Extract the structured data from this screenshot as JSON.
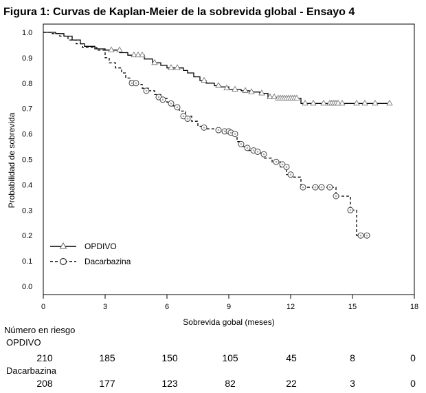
{
  "title": "Figura 1: Curvas de Kaplan-Meier de la sobrevida global - Ensayo 4",
  "risk_table": {
    "heading": "Número en riesgo",
    "rows": [
      {
        "name": "OPDIVO",
        "values": [
          "210",
          "185",
          "150",
          "105",
          "45",
          "8",
          "0"
        ]
      },
      {
        "name": "Dacarbazina",
        "values": [
          "208",
          "177",
          "123",
          "82",
          "22",
          "3",
          "0"
        ]
      }
    ]
  },
  "chart_data": {
    "type": "line",
    "title": "Figura 1: Curvas de Kaplan-Meier de la sobrevida global - Ensayo 4",
    "xlabel": "Sobrevida gobal (meses)",
    "ylabel": "Probabilidad de sobrevida",
    "xlim": [
      0,
      18
    ],
    "ylim": [
      0,
      1.03
    ],
    "xticks": [
      0,
      3,
      6,
      9,
      12,
      15,
      18
    ],
    "xtick_labels": [
      "0",
      "3",
      "6",
      "9",
      "12",
      "15",
      "18"
    ],
    "yticks": [
      0,
      0.1,
      0.2,
      0.3,
      0.4,
      0.5,
      0.6,
      0.7,
      0.8,
      0.9,
      1.0
    ],
    "ytick_labels": [
      "0.0",
      "0.1",
      "0.2",
      "0.3",
      "0.4",
      "0.5",
      "0.6",
      "0.7",
      "0.8",
      "0.9",
      "1.0"
    ],
    "grid": false,
    "legend_position": "bottom-left",
    "series": [
      {
        "name": "OPDIVO",
        "style": "solid",
        "marker": "triangle",
        "color": "#000000",
        "steps": [
          [
            0,
            1.0
          ],
          [
            0.6,
            0.995
          ],
          [
            1.0,
            0.985
          ],
          [
            1.4,
            0.97
          ],
          [
            1.8,
            0.955
          ],
          [
            2.0,
            0.945
          ],
          [
            2.5,
            0.935
          ],
          [
            3.0,
            0.93
          ],
          [
            3.7,
            0.92
          ],
          [
            4.1,
            0.91
          ],
          [
            4.9,
            0.895
          ],
          [
            5.3,
            0.88
          ],
          [
            5.7,
            0.87
          ],
          [
            6.0,
            0.86
          ],
          [
            6.8,
            0.85
          ],
          [
            7.0,
            0.84
          ],
          [
            7.3,
            0.825
          ],
          [
            7.6,
            0.81
          ],
          [
            7.9,
            0.8
          ],
          [
            8.3,
            0.79
          ],
          [
            8.6,
            0.785
          ],
          [
            9.0,
            0.775
          ],
          [
            9.6,
            0.77
          ],
          [
            10.0,
            0.765
          ],
          [
            10.5,
            0.76
          ],
          [
            10.9,
            0.745
          ],
          [
            11.3,
            0.74
          ],
          [
            12.5,
            0.72
          ],
          [
            16.8,
            0.72
          ]
        ],
        "censored": [
          [
            3.3,
            0.93
          ],
          [
            3.7,
            0.93
          ],
          [
            4.4,
            0.91
          ],
          [
            4.6,
            0.91
          ],
          [
            4.8,
            0.91
          ],
          [
            5.4,
            0.88
          ],
          [
            6.2,
            0.86
          ],
          [
            6.5,
            0.86
          ],
          [
            7.8,
            0.81
          ],
          [
            8.5,
            0.79
          ],
          [
            8.9,
            0.78
          ],
          [
            9.3,
            0.775
          ],
          [
            9.8,
            0.77
          ],
          [
            10.1,
            0.765
          ],
          [
            10.6,
            0.76
          ],
          [
            11.0,
            0.745
          ],
          [
            11.2,
            0.745
          ],
          [
            11.4,
            0.74
          ],
          [
            11.5,
            0.74
          ],
          [
            11.6,
            0.74
          ],
          [
            11.7,
            0.74
          ],
          [
            11.8,
            0.74
          ],
          [
            11.9,
            0.74
          ],
          [
            12.0,
            0.74
          ],
          [
            12.1,
            0.74
          ],
          [
            12.2,
            0.74
          ],
          [
            12.3,
            0.74
          ],
          [
            12.7,
            0.72
          ],
          [
            13.1,
            0.72
          ],
          [
            13.6,
            0.72
          ],
          [
            13.9,
            0.72
          ],
          [
            14.0,
            0.72
          ],
          [
            14.1,
            0.72
          ],
          [
            14.2,
            0.72
          ],
          [
            14.3,
            0.72
          ],
          [
            14.5,
            0.72
          ],
          [
            15.2,
            0.72
          ],
          [
            15.6,
            0.72
          ],
          [
            16.1,
            0.72
          ],
          [
            16.8,
            0.72
          ]
        ]
      },
      {
        "name": "Dacarbazina",
        "style": "dashed",
        "marker": "circle",
        "color": "#000000",
        "steps": [
          [
            0,
            1.0
          ],
          [
            0.4,
            0.995
          ],
          [
            0.8,
            0.985
          ],
          [
            1.2,
            0.97
          ],
          [
            1.6,
            0.955
          ],
          [
            1.9,
            0.94
          ],
          [
            2.6,
            0.93
          ],
          [
            3.0,
            0.9
          ],
          [
            3.2,
            0.88
          ],
          [
            3.5,
            0.86
          ],
          [
            3.8,
            0.84
          ],
          [
            4.0,
            0.82
          ],
          [
            4.2,
            0.81
          ],
          [
            4.5,
            0.795
          ],
          [
            4.8,
            0.78
          ],
          [
            5.1,
            0.77
          ],
          [
            5.4,
            0.755
          ],
          [
            5.7,
            0.74
          ],
          [
            6.0,
            0.725
          ],
          [
            6.3,
            0.71
          ],
          [
            6.6,
            0.69
          ],
          [
            6.9,
            0.67
          ],
          [
            7.2,
            0.65
          ],
          [
            7.5,
            0.63
          ],
          [
            7.9,
            0.62
          ],
          [
            8.6,
            0.61
          ],
          [
            9.2,
            0.6
          ],
          [
            9.4,
            0.57
          ],
          [
            9.6,
            0.55
          ],
          [
            9.9,
            0.535
          ],
          [
            10.3,
            0.525
          ],
          [
            10.7,
            0.505
          ],
          [
            11.1,
            0.49
          ],
          [
            11.5,
            0.47
          ],
          [
            11.8,
            0.44
          ],
          [
            12.0,
            0.43
          ],
          [
            12.5,
            0.39
          ],
          [
            13.9,
            0.39
          ],
          [
            14.2,
            0.355
          ],
          [
            14.8,
            0.355
          ],
          [
            14.9,
            0.3
          ],
          [
            15.2,
            0.2
          ],
          [
            15.7,
            0.2
          ]
        ],
        "censored": [
          [
            4.3,
            0.8
          ],
          [
            4.5,
            0.8
          ],
          [
            5.0,
            0.77
          ],
          [
            5.6,
            0.745
          ],
          [
            5.8,
            0.735
          ],
          [
            6.2,
            0.72
          ],
          [
            6.5,
            0.705
          ],
          [
            6.8,
            0.67
          ],
          [
            7.0,
            0.66
          ],
          [
            7.8,
            0.625
          ],
          [
            8.5,
            0.615
          ],
          [
            8.8,
            0.61
          ],
          [
            9.0,
            0.61
          ],
          [
            9.1,
            0.605
          ],
          [
            9.3,
            0.6
          ],
          [
            9.6,
            0.56
          ],
          [
            9.9,
            0.545
          ],
          [
            10.2,
            0.535
          ],
          [
            10.4,
            0.53
          ],
          [
            10.7,
            0.52
          ],
          [
            11.3,
            0.49
          ],
          [
            11.6,
            0.48
          ],
          [
            11.8,
            0.47
          ],
          [
            12.0,
            0.44
          ],
          [
            12.6,
            0.39
          ],
          [
            13.2,
            0.39
          ],
          [
            13.5,
            0.39
          ],
          [
            13.9,
            0.39
          ],
          [
            14.2,
            0.355
          ],
          [
            14.9,
            0.3
          ],
          [
            15.4,
            0.2
          ],
          [
            15.7,
            0.2
          ]
        ]
      }
    ]
  }
}
